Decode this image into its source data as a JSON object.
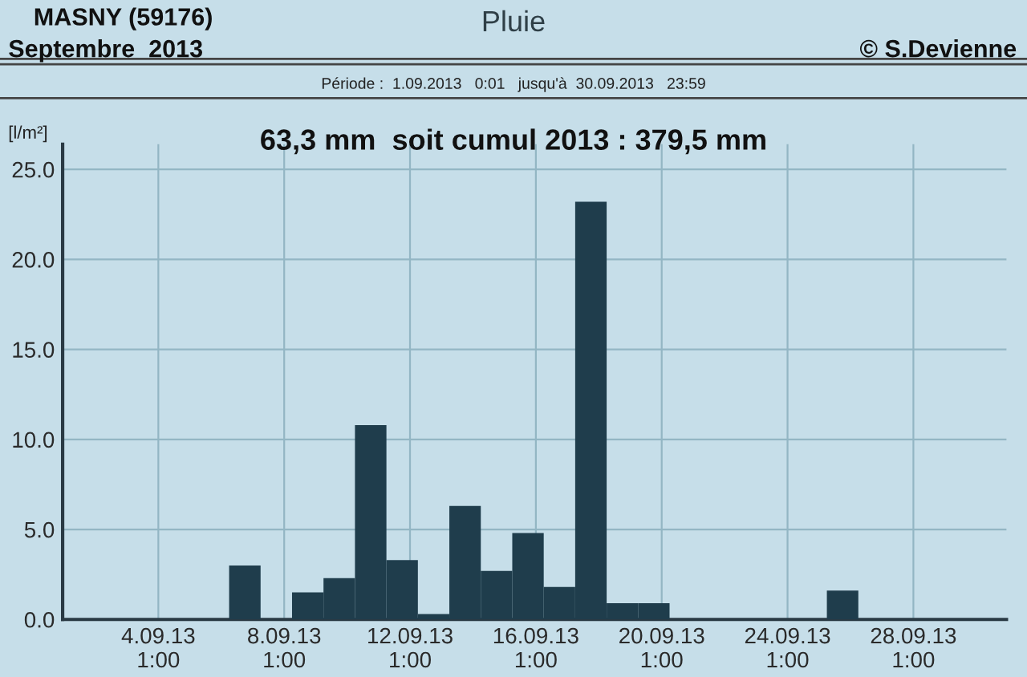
{
  "chart_data": {
    "type": "bar",
    "title": "Pluie",
    "subtitle": "Période :  1.09.2013   0:01   jusqu'à  30.09.2013   23:59",
    "ylabel": "[l/m²]",
    "annotations": [
      "MASNY (59176)",
      "Septembre  2013",
      "© S.Devienne",
      "63,3 mm  soit cumul 2013 : 379,5 mm"
    ],
    "x": [
      "2013-09-06T19:00",
      "2013-09-08T19:00",
      "2013-09-09T19:00",
      "2013-09-10T19:00",
      "2013-09-11T19:00",
      "2013-09-12T19:00",
      "2013-09-13T19:00",
      "2013-09-14T19:00",
      "2013-09-15T19:00",
      "2013-09-16T19:00",
      "2013-09-17T19:00",
      "2013-09-18T19:00",
      "2013-09-19T19:00",
      "2013-09-25T19:00"
    ],
    "values": [
      3.0,
      1.5,
      2.3,
      10.8,
      3.3,
      0.3,
      6.3,
      2.7,
      4.8,
      1.8,
      23.2,
      0.9,
      0.9,
      1.6
    ],
    "color": "#1f3d4c",
    "xlim": [
      "2013-09-01T00:00",
      "2013-10-01T00:00"
    ],
    "xticks": [
      {
        "value": "2013-09-04T01:00",
        "label": "4.09.13\n1:00"
      },
      {
        "value": "2013-09-08T01:00",
        "label": "8.09.13\n1:00"
      },
      {
        "value": "2013-09-12T01:00",
        "label": "12.09.13\n1:00"
      },
      {
        "value": "2013-09-16T01:00",
        "label": "16.09.13\n1:00"
      },
      {
        "value": "2013-09-20T01:00",
        "label": "20.09.13\n1:00"
      },
      {
        "value": "2013-09-24T01:00",
        "label": "24.09.13\n1:00"
      },
      {
        "value": "2013-09-28T01:00",
        "label": "28.09.13\n1:00"
      }
    ],
    "ylim": [
      0,
      26.4
    ],
    "yticks": [
      {
        "value": 0,
        "label": "0.0"
      },
      {
        "value": 5,
        "label": "5.0"
      },
      {
        "value": 10,
        "label": "10.0"
      },
      {
        "value": 15,
        "label": "15.0"
      },
      {
        "value": 20,
        "label": "20.0"
      },
      {
        "value": 25,
        "label": "25.0"
      }
    ],
    "grid": true,
    "legend": false
  }
}
